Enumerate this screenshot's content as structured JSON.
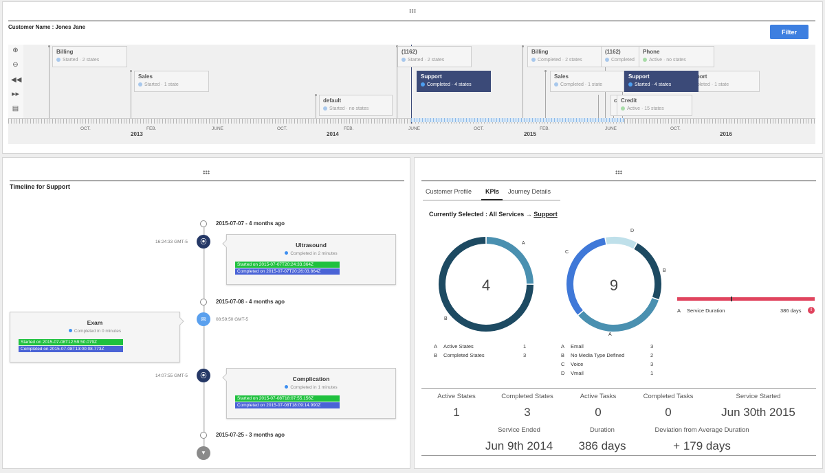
{
  "top": {
    "customer_name": "Customer Name : Jones Jane",
    "filter_label": "Filter",
    "tools": [
      "zoom-in-icon",
      "zoom-out-icon",
      "rewind-icon",
      "fast-forward-icon",
      "calendar-icon"
    ],
    "events": [
      {
        "title": "Billing",
        "status": "Started · 2 states"
      },
      {
        "title": "Sales",
        "status": "Started · 1 state"
      },
      {
        "title": "default",
        "status": "Started · no states"
      },
      {
        "title": "(1162)",
        "status": "Started · 2 states"
      },
      {
        "title": "Support",
        "status": "Completed · 4 states"
      },
      {
        "title": "Billing",
        "status": "Completed · 2 states"
      },
      {
        "title": "Sales",
        "status": "Completed · 1 state"
      },
      {
        "title": "(1162)",
        "status": "Completed"
      },
      {
        "title": "Phone",
        "status": "Active · no states"
      },
      {
        "title": "Support",
        "status": "Started · 4 states"
      },
      {
        "title": "pport",
        "status": "mpleted · 1 state"
      },
      {
        "title": "c",
        "status": ""
      },
      {
        "title": "Credit",
        "status": "Active · 15 states"
      }
    ],
    "axis": [
      "OCT.",
      "FEB.",
      "JUNE",
      "OCT.",
      "FEB.",
      "JUNE",
      "OCT.",
      "FEB.",
      "JUNE",
      "OCT."
    ],
    "years": [
      "2013",
      "2014",
      "2015",
      "2016"
    ]
  },
  "left": {
    "title": "Timeline for Support",
    "dates": [
      "2015-07-07 - 4 months ago",
      "2015-07-08 - 4 months ago",
      "2015-07-25 - 3 months ago"
    ],
    "items": [
      {
        "time": "16:24:33 GMT-5",
        "title": "Ultrasound",
        "status": "Completed in 2 minutes",
        "started": "Started on 2015-07-07T20:24:33.364Z",
        "completed": "Completed on 2015-07-07T20:26:03.864Z"
      },
      {
        "time": "08:59:50 GMT-5",
        "title": "Exam",
        "status": "Completed in 0 minutes",
        "started": "Started on 2015-07-08T12:59:50.079Z",
        "completed": "Completed on 2015-07-08T13:00:08.773Z"
      },
      {
        "time": "14:07:55 GMT-5",
        "title": "Complication",
        "status": "Completed in 1 minutes",
        "started": "Started on 2015-07-08T18:07:55.156Z",
        "completed": "Completed on 2015-07-08T18:09:14.990Z"
      }
    ]
  },
  "right": {
    "tabs": [
      "Customer Profile",
      "KPIs",
      "Journey Details"
    ],
    "selected_prefix": "Currently Selected : All Services → ",
    "selected_link": "Support",
    "colors": {
      "dark": "#1d4a62",
      "mid": "#4a90b0",
      "blue": "#3f78d8",
      "light": "#bfe0ea",
      "red": "#e0445e"
    },
    "donut1": {
      "center": "4",
      "labels": [
        "A",
        "B"
      ],
      "values": [
        1,
        3
      ],
      "legend": [
        {
          "key": "A",
          "name": "Active States",
          "value": "1"
        },
        {
          "key": "B",
          "name": "Completed States",
          "value": "3"
        }
      ]
    },
    "donut2": {
      "center": "9",
      "labels": [
        "A",
        "B",
        "C",
        "D"
      ],
      "values": [
        3,
        2,
        3,
        1
      ],
      "legend": [
        {
          "key": "A",
          "name": "Email",
          "value": "3"
        },
        {
          "key": "B",
          "name": "No Media Type Defined",
          "value": "2"
        },
        {
          "key": "C",
          "name": "Voice",
          "value": "3"
        },
        {
          "key": "D",
          "name": "Vmail",
          "value": "1"
        }
      ]
    },
    "duration_bar": {
      "key": "A",
      "name": "Service Duration",
      "value": "386 days",
      "marker_fraction": 0.39
    },
    "kpis_row1": [
      {
        "label": "Active States",
        "value": "1"
      },
      {
        "label": "Completed States",
        "value": "3"
      },
      {
        "label": "Active Tasks",
        "value": "0"
      },
      {
        "label": "Completed Tasks",
        "value": "0"
      },
      {
        "label": "Service Started",
        "value": "Jun 30th 2015"
      }
    ],
    "kpis_row2": [
      {
        "label": "Service Ended",
        "value": "Jun 9th 2014"
      },
      {
        "label": "Duration",
        "value": "386 days"
      },
      {
        "label": "Deviation from Average Duration",
        "value": "+ 179 days"
      }
    ]
  }
}
